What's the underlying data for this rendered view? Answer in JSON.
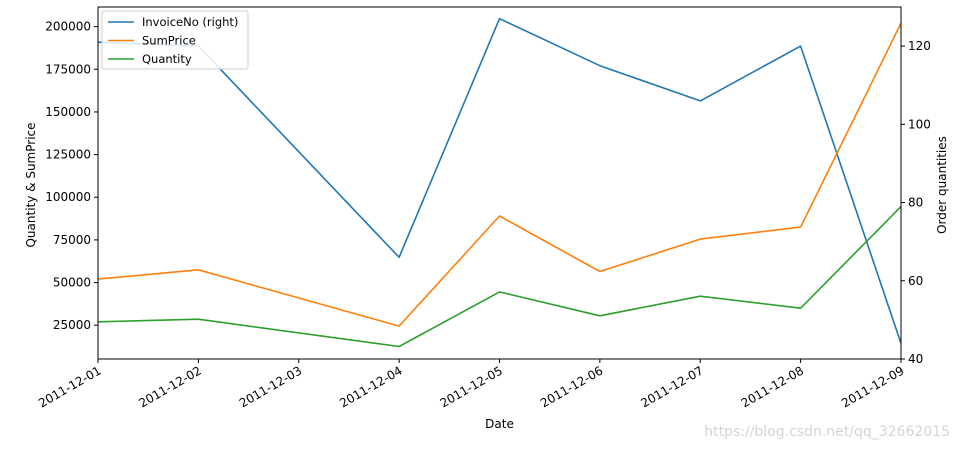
{
  "chart_data": {
    "type": "line",
    "xlabel": "Date",
    "ylabel_left": "Quantity & SumPrice",
    "ylabel_right": "Order quantities",
    "x": [
      "2011-12-01",
      "2011-12-02",
      "2011-12-03",
      "2011-12-04",
      "2011-12-05",
      "2011-12-06",
      "2011-12-07",
      "2011-12-08",
      "2011-12-09"
    ],
    "ylim_left": [
      5200,
      211500
    ],
    "ylim_right": [
      40,
      130
    ],
    "yticks_left": [
      25000,
      50000,
      75000,
      100000,
      125000,
      150000,
      175000,
      200000
    ],
    "ytick_labels_left": [
      "25000",
      "50000",
      "75000",
      "100000",
      "125000",
      "150000",
      "175000",
      "200000"
    ],
    "yticks_right": [
      40,
      60,
      80,
      100,
      120
    ],
    "ytick_labels_right": [
      "40",
      "60",
      "80",
      "100",
      "120"
    ],
    "grid": false,
    "legend_position": "top-left",
    "series": [
      {
        "name": "InvoiceNo (right)",
        "axis": "right",
        "color": "#1f77b4",
        "points": [
          [
            "2011-12-01",
            121
          ],
          [
            "2011-12-02",
            120
          ],
          [
            "2011-12-04",
            66
          ],
          [
            "2011-12-05",
            127
          ],
          [
            "2011-12-06",
            115
          ],
          [
            "2011-12-07",
            106
          ],
          [
            "2011-12-08",
            120
          ],
          [
            "2011-12-09",
            44
          ]
        ]
      },
      {
        "name": "SumPrice",
        "axis": "left",
        "color": "#ff7f0e",
        "points": [
          [
            "2011-12-01",
            52000
          ],
          [
            "2011-12-02",
            57500
          ],
          [
            "2011-12-04",
            24500
          ],
          [
            "2011-12-05",
            89000
          ],
          [
            "2011-12-06",
            56500
          ],
          [
            "2011-12-07",
            75500
          ],
          [
            "2011-12-08",
            82500
          ],
          [
            "2011-12-09",
            202000
          ]
        ]
      },
      {
        "name": "Quantity",
        "axis": "left",
        "color": "#2ca02c",
        "points": [
          [
            "2011-12-01",
            27000
          ],
          [
            "2011-12-02",
            28500
          ],
          [
            "2011-12-04",
            12500
          ],
          [
            "2011-12-05",
            44500
          ],
          [
            "2011-12-06",
            30500
          ],
          [
            "2011-12-07",
            42000
          ],
          [
            "2011-12-08",
            35000
          ],
          [
            "2011-12-09",
            94500
          ]
        ]
      }
    ]
  },
  "watermark": "https://blog.csdn.net/qq_32662015"
}
